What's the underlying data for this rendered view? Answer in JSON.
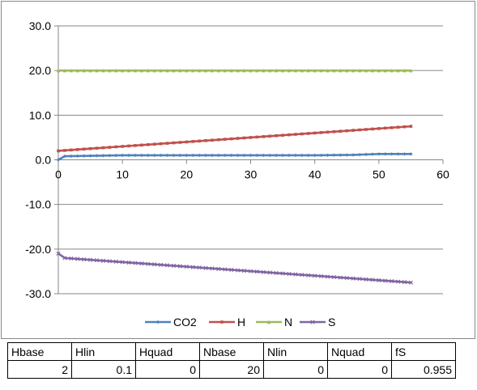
{
  "chart_data": {
    "type": "line",
    "title": "",
    "xlabel": "",
    "ylabel": "",
    "xlim": [
      0,
      60
    ],
    "ylim": [
      -30,
      30
    ],
    "x_ticks": [
      0,
      10,
      20,
      30,
      40,
      50,
      60
    ],
    "y_ticks": [
      30,
      20,
      10,
      0,
      -10,
      -20,
      -30
    ],
    "y_tick_labels": [
      "30.0",
      "20.0",
      "10.0",
      "0.0",
      "-10.0",
      "-20.0",
      "-30.0"
    ],
    "grid": "horizontal",
    "legend_position": "bottom",
    "series": [
      {
        "name": "CO2",
        "color": "#4f81bd",
        "marker": "diamond",
        "x": [
          0,
          1,
          5,
          10,
          20,
          30,
          40,
          46,
          48,
          50,
          55
        ],
        "y": [
          0.0,
          0.8,
          0.9,
          1.0,
          1.0,
          1.0,
          1.0,
          1.1,
          1.2,
          1.3,
          1.3
        ]
      },
      {
        "name": "H",
        "color": "#c0504d",
        "marker": "square",
        "x": [
          0,
          55
        ],
        "y": [
          2.0,
          7.5
        ]
      },
      {
        "name": "N",
        "color": "#9bbb59",
        "marker": "triangle",
        "x": [
          0,
          55
        ],
        "y": [
          20.0,
          20.0
        ]
      },
      {
        "name": "S",
        "color": "#8064a2",
        "marker": "x",
        "x": [
          0,
          1,
          55
        ],
        "y": [
          -21.0,
          -22.0,
          -27.5
        ]
      }
    ]
  },
  "params": {
    "headers": [
      "Hbase",
      "Hlin",
      "Hquad",
      "Nbase",
      "Nlin",
      "Nquad",
      "fS"
    ],
    "values": [
      "2",
      "0.1",
      "0",
      "20",
      "0",
      "0",
      "0.955"
    ]
  }
}
